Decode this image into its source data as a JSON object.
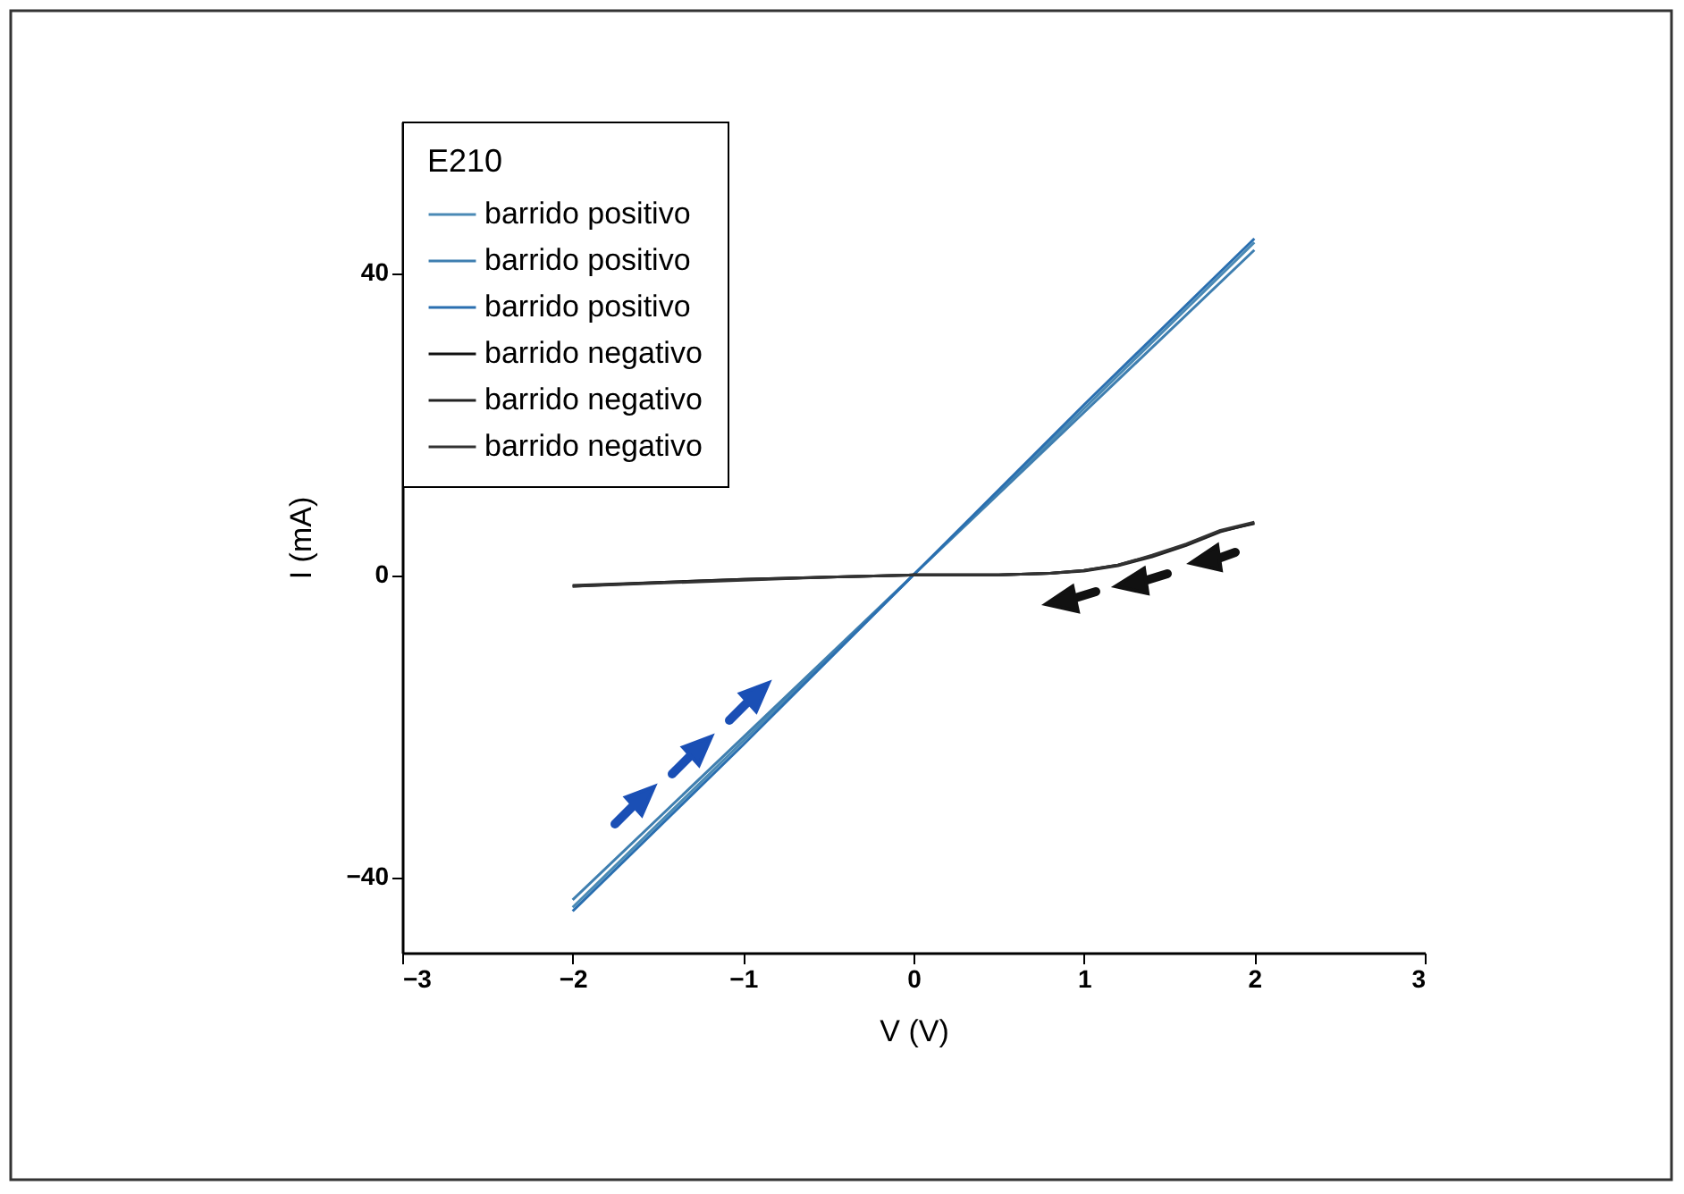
{
  "chart_data": {
    "type": "line",
    "xlabel": "V (V)",
    "ylabel": "I (mA)",
    "legend_title": "E210",
    "legend": "top left",
    "grid": false,
    "xlim": [
      -3,
      3
    ],
    "xticks": [
      -3,
      -2,
      -1,
      0,
      1,
      2,
      3
    ],
    "ylim": [
      -50,
      60
    ],
    "yticks": [
      -40,
      0,
      40
    ],
    "series": [
      {
        "name": "barrido positivo",
        "color": "#4a8ab5",
        "x": [
          -2,
          -1,
          0,
          1,
          2
        ],
        "values": [
          -44,
          -22,
          0,
          22,
          44
        ]
      },
      {
        "name": "barrido positivo",
        "color": "#3f7fb0",
        "x": [
          -2,
          -1,
          0,
          1,
          2
        ],
        "values": [
          -43,
          -21.5,
          0,
          21.5,
          43
        ]
      },
      {
        "name": "barrido positivo",
        "color": "#2a6fb0",
        "x": [
          -2,
          -1,
          0,
          1,
          2
        ],
        "values": [
          -44.5,
          -22.5,
          0,
          22.5,
          44.5
        ]
      },
      {
        "name": "barrido negativo",
        "color": "#111111",
        "x": [
          -2,
          -1.5,
          -1,
          -0.5,
          0,
          0.5,
          0.8,
          1,
          1.2,
          1.4,
          1.6,
          1.8,
          2
        ],
        "values": [
          -1.5,
          -1,
          -0.6,
          -0.3,
          0,
          0,
          0.2,
          0.6,
          1.3,
          2.5,
          4,
          5.8,
          6.8
        ]
      },
      {
        "name": "barrido negativo",
        "color": "#222222",
        "x": [
          -2,
          -1.5,
          -1,
          -0.5,
          0,
          0.5,
          0.8,
          1,
          1.2,
          1.4,
          1.6,
          1.8,
          2
        ],
        "values": [
          -1.4,
          -1,
          -0.6,
          -0.3,
          0,
          0,
          0.2,
          0.5,
          1.2,
          2.4,
          3.9,
          5.7,
          6.9
        ]
      },
      {
        "name": "barrido negativo",
        "color": "#333333",
        "x": [
          -2,
          -1.5,
          -1,
          -0.5,
          0,
          0.5,
          0.8,
          1,
          1.2,
          1.4,
          1.6,
          1.8,
          2
        ],
        "values": [
          -1.5,
          -1.1,
          -0.7,
          -0.3,
          0,
          0,
          0.2,
          0.6,
          1.3,
          2.6,
          4.1,
          5.9,
          7
        ]
      }
    ]
  }
}
